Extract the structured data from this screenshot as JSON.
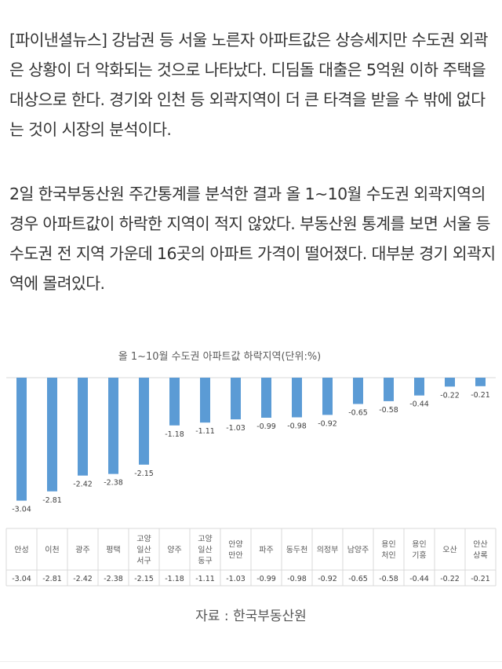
{
  "article": {
    "paragraph1": "[파이낸셜뉴스] 강남권 등 서울 노른자 아파트값은 상승세지만 수도권 외곽은 상황이 더 악화되는 것으로 나타났다. 디딤돌 대출은 5억원 이하 주택을 대상으로 한다. 경기와 인천 등 외곽지역이 더 큰 타격을 받을 수 밖에 없다는 것이 시장의 분석이다.",
    "paragraph2": "2일 한국부동산원 주간통계를 분석한 결과 올 1~10월 수도권 외곽지역의 경우 아파트값이 하락한 지역이 적지 않았다. 부동산원 통계를 보면 서울 등 수도권 전 지역 가운데 16곳의 아파트 가격이 떨어졌다. 대부분 경기 외곽지역에 몰려있다."
  },
  "chart_data": {
    "type": "bar",
    "title": "올 1~10월 수도권 아파트값 하락지역(단위:%)",
    "categories": [
      "안성",
      "이천",
      "광주",
      "평택",
      "고양 일산서구",
      "양주",
      "고양 일산동구",
      "안양 만안",
      "파주",
      "동두천",
      "의정부",
      "남양주",
      "용인 처인",
      "용인 기흥",
      "오산",
      "안산 상록"
    ],
    "values": [
      -3.04,
      -2.81,
      -2.42,
      -2.38,
      -2.15,
      -1.18,
      -1.11,
      -1.03,
      -0.99,
      -0.98,
      -0.92,
      -0.65,
      -0.58,
      -0.44,
      -0.22,
      -0.21
    ],
    "value_labels": [
      "-3.04",
      "-2.81",
      "-2.42",
      "-2.38",
      "-2.15",
      "-1.18",
      "-1.11",
      "-1.03",
      "-0.99",
      "-0.98",
      "-0.92",
      "-0.65",
      "-0.58",
      "-0.44",
      "-0.22",
      "-0.21"
    ],
    "ylim": [
      -3.3,
      0
    ],
    "bar_color": "#5b9bd5",
    "grid": false,
    "legend": "none",
    "data_table": true
  },
  "source": "자료 : 한국부동산원"
}
